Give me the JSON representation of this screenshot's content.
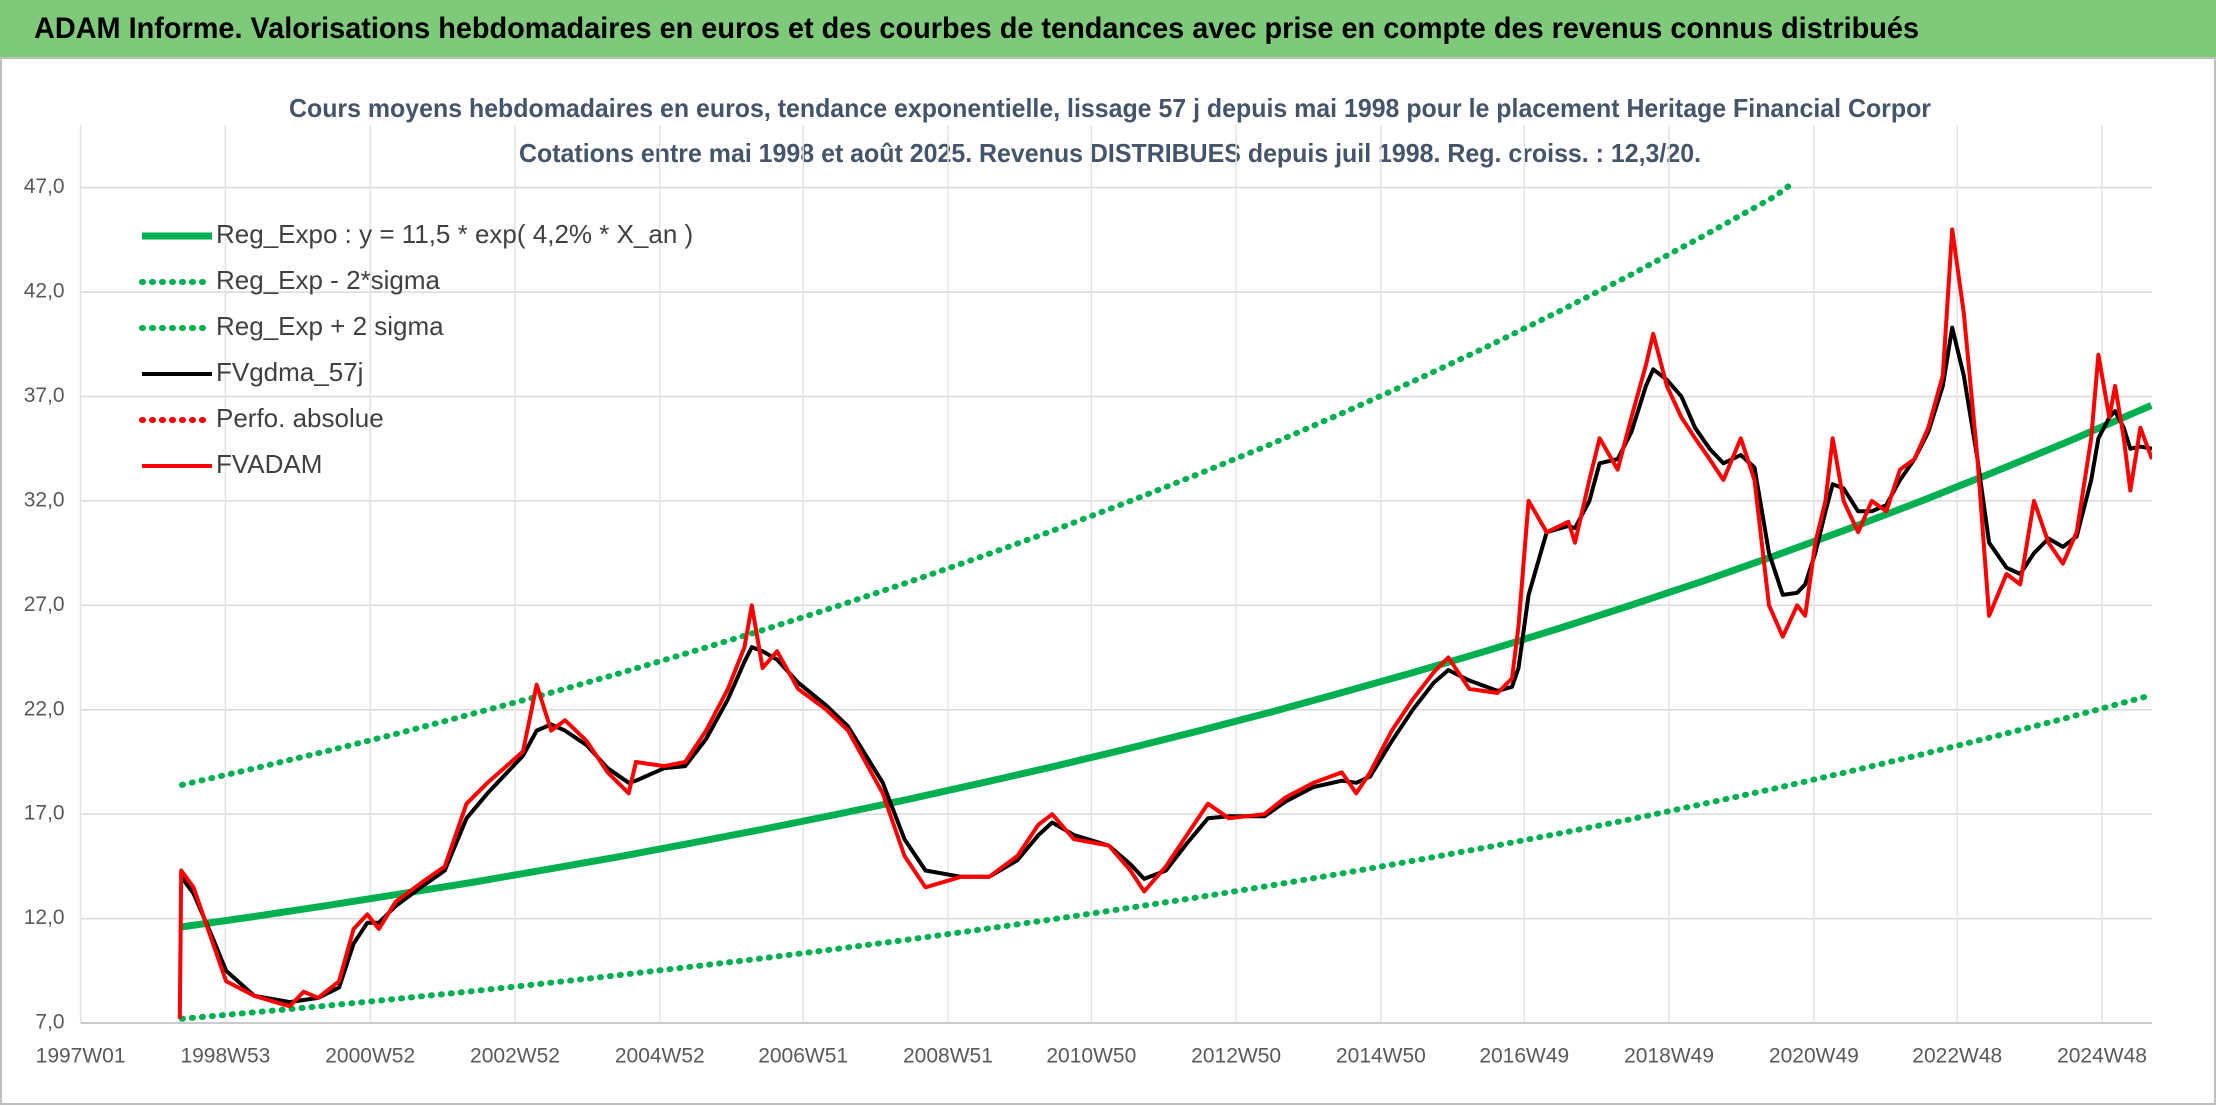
{
  "chart_data": {
    "type": "line",
    "header": "ADAM Informe. Valorisations hebdomadaires en euros et des courbes de tendances avec prise en compte des revenus connus distribués",
    "title": "Cours moyens hebdomadaires en euros, tendance exponentielle, lissage 57 j depuis mai 1998 pour le placement Heritage Financial Corpor",
    "subtitle": "Cotations entre mai 1998 et août 2025. Revenus DISTRIBUES depuis juil 1998. Reg. croiss. : 12,3/20.",
    "xlim": [
      1997.0,
      2025.61
    ],
    "ylim": [
      7,
      50
    ],
    "grid": true,
    "legend": "top-left",
    "xticks": [
      {
        "value": 1997.0,
        "label": "1997W01"
      },
      {
        "value": 1999.0,
        "label": "1998W53"
      },
      {
        "value": 2001.0,
        "label": "2000W52"
      },
      {
        "value": 2003.0,
        "label": "2002W52"
      },
      {
        "value": 2005.0,
        "label": "2004W52"
      },
      {
        "value": 2006.98,
        "label": "2006W51"
      },
      {
        "value": 2008.98,
        "label": "2008W51"
      },
      {
        "value": 2010.96,
        "label": "2010W50"
      },
      {
        "value": 2012.96,
        "label": "2012W50"
      },
      {
        "value": 2014.96,
        "label": "2014W50"
      },
      {
        "value": 2016.94,
        "label": "2016W49"
      },
      {
        "value": 2018.94,
        "label": "2018W49"
      },
      {
        "value": 2020.94,
        "label": "2020W49"
      },
      {
        "value": 2022.92,
        "label": "2022W48"
      },
      {
        "value": 2024.92,
        "label": "2024W48"
      }
    ],
    "yticks": [
      {
        "value": 7,
        "label": "7,0"
      },
      {
        "value": 12,
        "label": "12,0"
      },
      {
        "value": 17,
        "label": "17,0"
      },
      {
        "value": 22,
        "label": "22,0"
      },
      {
        "value": 27,
        "label": "27,0"
      },
      {
        "value": 32,
        "label": "32,0"
      },
      {
        "value": 37,
        "label": "37,0"
      },
      {
        "value": 42,
        "label": "42,0"
      },
      {
        "value": 47,
        "label": "47,0"
      }
    ],
    "series": [
      {
        "name": "Reg_Expo : y = 11,5 * exp( 4,2% *  X_an )",
        "color": "#00b050",
        "style": "solid",
        "x": [
          1998.4,
          1999.4,
          2000.4,
          2001.4,
          2002.4,
          2003.4,
          2004.4,
          2005.4,
          2006.4,
          2007.4,
          2008.4,
          2009.4,
          2010.4,
          2011.4,
          2012.4,
          2013.4,
          2014.4,
          2015.4,
          2016.4,
          2017.4,
          2018.4,
          2019.4,
          2020.4,
          2021.4,
          2022.4,
          2023.4,
          2024.4,
          2025.4,
          2025.6
        ],
        "values": [
          11.6,
          12.1,
          12.62,
          13.17,
          13.73,
          14.33,
          14.94,
          15.59,
          16.26,
          16.96,
          17.69,
          18.46,
          19.25,
          20.08,
          20.95,
          21.85,
          22.8,
          23.78,
          24.8,
          25.87,
          26.99,
          28.15,
          29.37,
          30.64,
          31.96,
          33.34,
          34.77,
          36.27,
          36.57
        ]
      },
      {
        "name": "Reg_Exp - 2*sigma",
        "color": "#00b050",
        "style": "dotted",
        "x": [
          1998.4,
          1999.4,
          2000.4,
          2001.4,
          2002.4,
          2003.4,
          2004.4,
          2005.4,
          2006.4,
          2007.4,
          2008.4,
          2009.4,
          2010.4,
          2011.4,
          2012.4,
          2013.4,
          2014.4,
          2015.4,
          2016.4,
          2017.4,
          2018.4,
          2019.4,
          2020.4,
          2021.4,
          2022.4,
          2023.4,
          2024.4,
          2025.4,
          2025.6
        ],
        "values": [
          7.2,
          7.51,
          7.83,
          8.17,
          8.52,
          8.89,
          9.28,
          9.68,
          10.09,
          10.53,
          10.98,
          11.46,
          11.95,
          12.47,
          13.0,
          13.56,
          14.15,
          14.76,
          15.4,
          16.06,
          16.75,
          17.48,
          18.23,
          19.02,
          19.84,
          20.69,
          21.58,
          22.51,
          22.7
        ]
      },
      {
        "name": "Reg_Exp + 2 sigma",
        "color": "#00b050",
        "style": "dotted",
        "x": [
          1998.4,
          1999.4,
          2000.4,
          2001.4,
          2002.4,
          2003.4,
          2004.4,
          2005.4,
          2006.4,
          2007.4,
          2008.4,
          2009.4,
          2010.4,
          2011.4,
          2012.4,
          2013.4,
          2014.4,
          2015.4,
          2016.4,
          2017.4,
          2018.4,
          2019.4,
          2020.4,
          2020.6
        ],
        "values": [
          18.4,
          19.19,
          20.02,
          20.88,
          21.79,
          22.72,
          23.7,
          24.73,
          25.79,
          26.9,
          28.07,
          29.28,
          30.54,
          31.86,
          33.23,
          34.66,
          36.16,
          37.72,
          39.34,
          41.04,
          42.81,
          44.66,
          46.58,
          47.1
        ]
      },
      {
        "name": "FVgdma_57j",
        "color": "#000000",
        "style": "solid",
        "x": [
          1998.37,
          1998.39,
          1998.56,
          1998.81,
          1999.01,
          1999.4,
          1999.89,
          2000.08,
          2000.28,
          2000.57,
          2000.77,
          2000.96,
          2001.12,
          2001.35,
          2001.74,
          2002.03,
          2002.33,
          2002.62,
          2003.11,
          2003.3,
          2003.5,
          2003.69,
          2003.99,
          2004.28,
          2004.57,
          2004.67,
          2005.06,
          2005.35,
          2005.64,
          2005.94,
          2006.17,
          2006.27,
          2006.42,
          2006.62,
          2006.91,
          2007.3,
          2007.6,
          2008.08,
          2008.38,
          2008.67,
          2009.16,
          2009.55,
          2009.94,
          2010.23,
          2010.42,
          2010.72,
          2011.2,
          2011.5,
          2011.69,
          2011.99,
          2012.28,
          2012.57,
          2012.86,
          2013.35,
          2013.64,
          2014.03,
          2014.42,
          2014.62,
          2014.81,
          2015.11,
          2015.4,
          2015.69,
          2015.89,
          2016.18,
          2016.57,
          2016.77,
          2016.86,
          2017.0,
          2017.25,
          2017.55,
          2017.64,
          2017.84,
          2017.98,
          2018.23,
          2018.42,
          2018.62,
          2018.72,
          2018.91,
          2019.11,
          2019.3,
          2019.5,
          2019.69,
          2019.93,
          2020.12,
          2020.32,
          2020.51,
          2020.71,
          2020.82,
          2020.96,
          2021.1,
          2021.2,
          2021.35,
          2021.55,
          2021.74,
          2021.94,
          2022.13,
          2022.33,
          2022.52,
          2022.72,
          2022.85,
          2023.01,
          2023.2,
          2023.36,
          2023.6,
          2023.79,
          2023.98,
          2024.18,
          2024.38,
          2024.57,
          2024.77,
          2024.87,
          2025.02,
          2025.1,
          2025.22,
          2025.31,
          2025.45,
          2025.61
        ],
        "values": [
          null,
          14.0,
          13.2,
          11.2,
          9.5,
          8.3,
          8.0,
          8.1,
          8.2,
          8.7,
          10.8,
          11.8,
          11.8,
          12.6,
          13.6,
          14.3,
          16.8,
          18.0,
          19.8,
          21.0,
          21.3,
          21.0,
          20.3,
          19.2,
          18.5,
          18.6,
          19.2,
          19.3,
          20.6,
          22.5,
          24.3,
          25.0,
          24.8,
          24.4,
          23.3,
          22.2,
          21.2,
          18.5,
          15.8,
          14.3,
          14.0,
          14.0,
          14.8,
          16.0,
          16.6,
          16.0,
          15.5,
          14.6,
          13.9,
          14.3,
          15.6,
          16.8,
          16.9,
          16.9,
          17.6,
          18.3,
          18.6,
          18.5,
          18.8,
          20.5,
          22.0,
          23.3,
          23.9,
          23.4,
          22.9,
          23.1,
          24.0,
          27.5,
          30.5,
          30.8,
          30.7,
          32.0,
          33.8,
          34.0,
          35.3,
          37.5,
          38.3,
          37.8,
          37.0,
          35.5,
          34.5,
          33.8,
          34.2,
          33.6,
          29.5,
          27.5,
          27.6,
          28.0,
          29.5,
          31.5,
          32.8,
          32.6,
          31.5,
          31.5,
          31.8,
          33.0,
          34.0,
          35.3,
          37.5,
          40.3,
          38.0,
          34.0,
          30.0,
          28.8,
          28.5,
          29.5,
          30.2,
          29.8,
          30.3,
          33.0,
          35.0,
          36.0,
          36.3,
          35.5,
          34.5,
          34.6,
          34.5
        ]
      },
      {
        "name": "Perfo. absolue",
        "color": "#ff0000",
        "style": "dotted",
        "x": [],
        "values": []
      },
      {
        "name": "FVADAM",
        "color": "#ff0000",
        "style": "solid",
        "x": [
          1998.37,
          1998.39,
          1998.56,
          1998.81,
          1999.01,
          1999.4,
          1999.89,
          2000.08,
          2000.28,
          2000.57,
          2000.77,
          2000.96,
          2001.12,
          2001.35,
          2001.74,
          2002.03,
          2002.33,
          2002.62,
          2003.11,
          2003.3,
          2003.5,
          2003.69,
          2003.99,
          2004.28,
          2004.57,
          2004.67,
          2005.06,
          2005.35,
          2005.64,
          2005.94,
          2006.17,
          2006.27,
          2006.42,
          2006.62,
          2006.91,
          2007.3,
          2007.6,
          2008.08,
          2008.38,
          2008.67,
          2009.16,
          2009.55,
          2009.94,
          2010.23,
          2010.42,
          2010.72,
          2011.2,
          2011.5,
          2011.69,
          2011.99,
          2012.28,
          2012.57,
          2012.86,
          2013.35,
          2013.64,
          2014.03,
          2014.42,
          2014.62,
          2014.81,
          2015.11,
          2015.4,
          2015.69,
          2015.89,
          2016.18,
          2016.57,
          2016.77,
          2016.86,
          2017.0,
          2017.25,
          2017.55,
          2017.64,
          2017.84,
          2017.98,
          2018.23,
          2018.42,
          2018.62,
          2018.72,
          2018.91,
          2019.11,
          2019.3,
          2019.5,
          2019.69,
          2019.93,
          2020.12,
          2020.32,
          2020.51,
          2020.71,
          2020.82,
          2020.96,
          2021.1,
          2021.2,
          2021.35,
          2021.55,
          2021.74,
          2021.94,
          2022.13,
          2022.33,
          2022.52,
          2022.72,
          2022.85,
          2023.01,
          2023.2,
          2023.36,
          2023.6,
          2023.79,
          2023.98,
          2024.18,
          2024.38,
          2024.57,
          2024.77,
          2024.87,
          2025.02,
          2025.1,
          2025.22,
          2025.31,
          2025.45,
          2025.61
        ],
        "values": [
          7.2,
          14.3,
          13.5,
          11,
          9,
          8.3,
          7.8,
          8.5,
          8.2,
          9,
          11.5,
          12.2,
          11.5,
          12.8,
          13.8,
          14.5,
          17.5,
          18.5,
          20,
          23.2,
          21,
          21.5,
          20.5,
          19,
          18,
          19.5,
          19.3,
          19.5,
          21,
          23,
          25,
          27,
          24,
          24.8,
          23,
          22,
          21,
          18,
          15,
          13.5,
          14,
          14,
          15,
          16.5,
          17,
          15.8,
          15.5,
          14.3,
          13.3,
          14.5,
          16,
          17.5,
          16.8,
          17,
          17.8,
          18.5,
          19,
          18,
          19,
          21,
          22.5,
          23.8,
          24.5,
          23,
          22.8,
          23.5,
          26,
          32,
          30.5,
          31,
          30,
          33,
          35,
          33.5,
          36,
          38.5,
          40,
          37.5,
          36,
          35,
          34,
          33,
          35,
          33,
          27,
          25.5,
          27,
          26.5,
          30,
          32,
          35,
          32,
          30.5,
          32,
          31.5,
          33.5,
          34,
          35.5,
          38,
          45,
          41,
          34,
          26.5,
          28.5,
          28,
          32,
          30,
          29,
          30.5,
          35,
          39,
          36,
          37.5,
          35,
          32.5,
          35.5,
          34
        ]
      }
    ]
  }
}
